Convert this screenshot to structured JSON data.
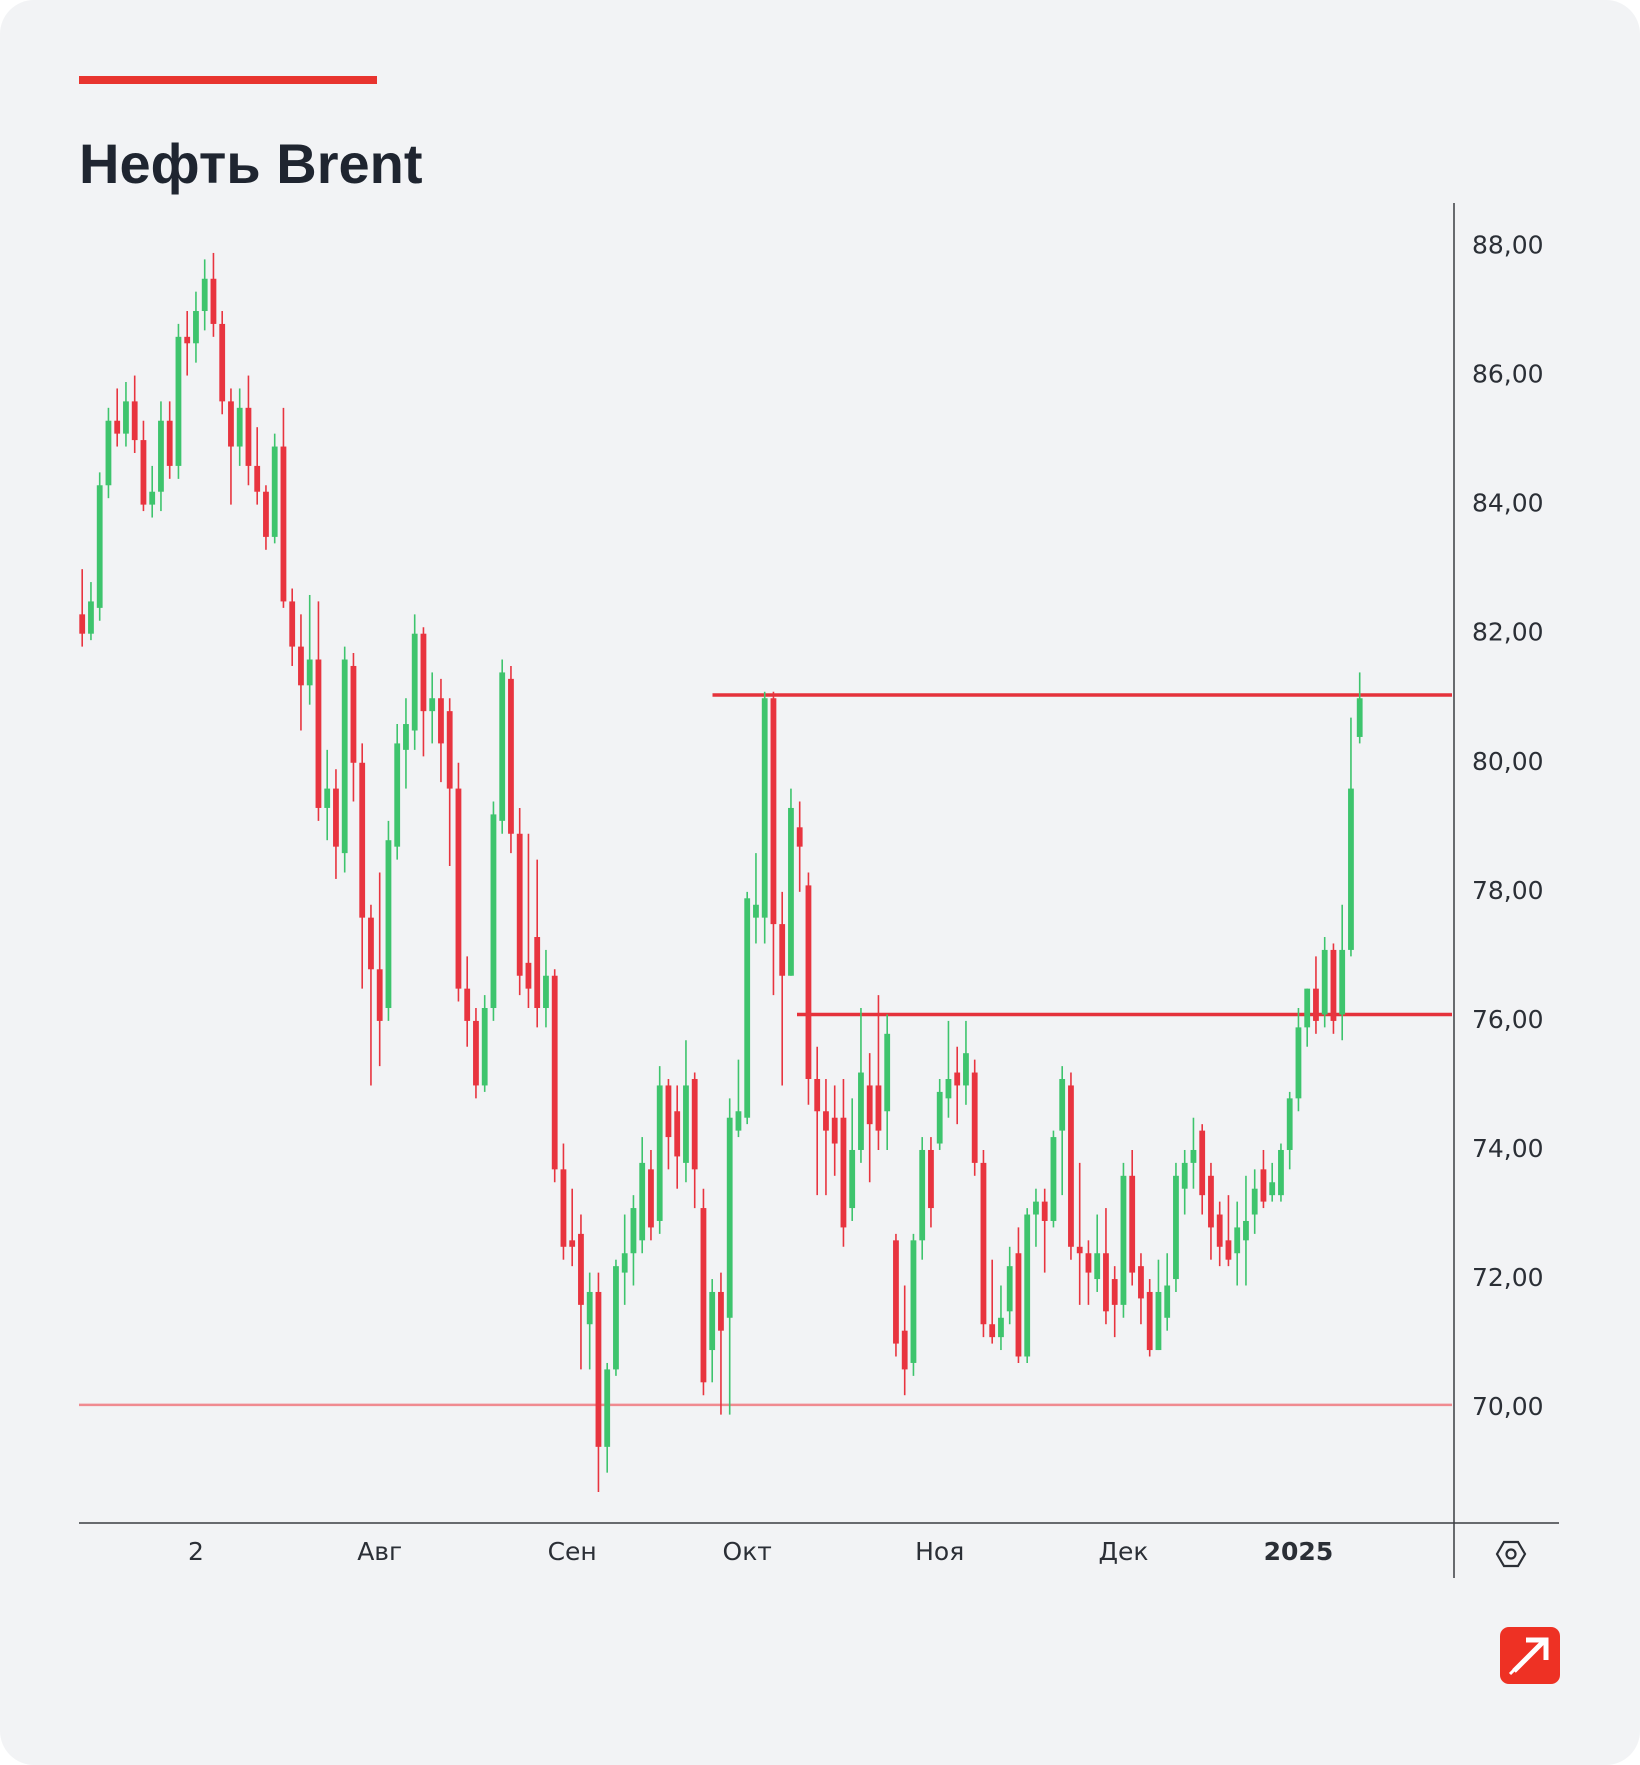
{
  "chart_data": {
    "type": "candlestick",
    "title": "Нефть Brent",
    "up_color": "#3ec46d",
    "down_color": "#e8343f",
    "categories": [
      null,
      null,
      null,
      null,
      null,
      null,
      null,
      null,
      null,
      null,
      null,
      null,
      null,
      "2",
      null,
      null,
      null,
      null,
      null,
      null,
      null,
      null,
      null,
      null,
      null,
      null,
      null,
      null,
      null,
      null,
      null,
      null,
      null,
      null,
      "Авг",
      null,
      null,
      null,
      null,
      null,
      null,
      null,
      null,
      null,
      null,
      null,
      null,
      null,
      null,
      null,
      null,
      null,
      null,
      null,
      null,
      null,
      "Сен",
      null,
      null,
      null,
      null,
      null,
      null,
      null,
      null,
      null,
      null,
      null,
      null,
      null,
      null,
      null,
      null,
      null,
      null,
      null,
      "Окт",
      null,
      null,
      null,
      null,
      null,
      null,
      null,
      null,
      null,
      null,
      null,
      null,
      null,
      null,
      null,
      null,
      null,
      null,
      null,
      null,
      null,
      "Ноя",
      null,
      null,
      null,
      null,
      null,
      null,
      null,
      null,
      null,
      null,
      null,
      null,
      null,
      null,
      null,
      null,
      null,
      null,
      null,
      null,
      "Дек",
      null,
      null,
      null,
      null,
      null,
      null,
      null,
      null,
      null,
      null,
      null,
      null,
      null,
      null,
      null,
      null,
      null,
      null,
      null,
      "2025",
      null,
      null,
      null,
      null,
      null,
      null,
      null
    ],
    "open": [
      82.3,
      82.0,
      82.4,
      84.3,
      85.3,
      85.1,
      85.6,
      85.0,
      84.0,
      84.2,
      85.3,
      84.6,
      86.6,
      86.5,
      87.0,
      87.5,
      86.8,
      85.6,
      84.9,
      85.5,
      84.6,
      84.2,
      83.5,
      84.9,
      82.5,
      81.8,
      81.2,
      81.6,
      79.3,
      79.6,
      78.6,
      81.5,
      80.0,
      77.6,
      76.8,
      76.2,
      78.7,
      80.2,
      80.5,
      82.0,
      80.8,
      81.0,
      80.8,
      79.6,
      76.5,
      76.0,
      75.0,
      76.2,
      79.1,
      81.3,
      78.9,
      76.9,
      77.3,
      76.2,
      76.7,
      73.7,
      72.6,
      72.7,
      71.3,
      71.8,
      69.4,
      70.6,
      72.1,
      72.4,
      72.6,
      73.7,
      72.9,
      75.0,
      74.6,
      73.8,
      75.1,
      73.1,
      70.9,
      71.8,
      71.4,
      74.3,
      74.5,
      77.6,
      77.6,
      81.0,
      77.5,
      76.7,
      79.0,
      78.1,
      75.1,
      74.6,
      74.5,
      74.5,
      73.1,
      74.0,
      75.0,
      75.0,
      74.6,
      72.6,
      71.2,
      70.7,
      72.6,
      74.0,
      74.1,
      74.8,
      75.2,
      75.0,
      75.2,
      73.8,
      71.3,
      71.1,
      71.5,
      72.4,
      70.8,
      73.0,
      73.2,
      72.9,
      74.3,
      75.0,
      72.5,
      72.4,
      72.0,
      72.4,
      72.0,
      71.6,
      73.6,
      72.2,
      71.8,
      70.9,
      71.4,
      72.0,
      73.4,
      73.8,
      74.3,
      73.6,
      73.0,
      72.6,
      72.4,
      72.6,
      73.0,
      73.7,
      73.3,
      73.3,
      74.0,
      74.8,
      75.9,
      76.5,
      76.1,
      77.1,
      76.1,
      77.1,
      80.4
    ],
    "high": [
      83.0,
      82.8,
      84.5,
      85.5,
      85.8,
      85.9,
      86.0,
      85.3,
      84.6,
      85.6,
      85.6,
      86.8,
      87.0,
      87.3,
      87.8,
      87.9,
      87.0,
      85.8,
      85.8,
      86.0,
      85.2,
      84.3,
      85.1,
      85.5,
      82.7,
      82.3,
      82.6,
      82.5,
      80.2,
      79.9,
      81.8,
      81.7,
      80.3,
      77.8,
      78.3,
      79.1,
      80.6,
      81.0,
      82.3,
      82.1,
      81.4,
      81.3,
      81.0,
      80.0,
      77.0,
      76.2,
      76.4,
      79.4,
      81.6,
      81.5,
      79.3,
      78.9,
      78.5,
      77.1,
      76.8,
      74.1,
      73.4,
      73.0,
      72.1,
      72.1,
      70.7,
      72.3,
      73.0,
      73.3,
      74.2,
      74.0,
      75.3,
      75.1,
      75.0,
      75.7,
      75.2,
      73.4,
      72.0,
      72.1,
      74.8,
      75.4,
      78.0,
      78.6,
      81.1,
      81.1,
      78.0,
      79.6,
      79.4,
      78.3,
      75.6,
      75.1,
      75.0,
      75.1,
      74.8,
      76.2,
      75.5,
      76.4,
      76.1,
      72.7,
      71.9,
      72.7,
      74.2,
      74.2,
      75.1,
      76.0,
      75.6,
      76.0,
      75.4,
      74.0,
      72.3,
      71.9,
      72.5,
      72.8,
      73.1,
      73.4,
      73.4,
      74.3,
      75.3,
      75.2,
      73.8,
      72.6,
      73.0,
      73.1,
      72.2,
      73.8,
      74.0,
      72.4,
      72.0,
      72.3,
      72.4,
      73.8,
      74.0,
      74.5,
      74.4,
      73.8,
      73.2,
      73.3,
      73.2,
      73.6,
      73.7,
      74.0,
      73.8,
      74.1,
      74.9,
      76.2,
      76.5,
      77.0,
      77.3,
      77.2,
      77.8,
      80.7,
      81.4
    ],
    "low": [
      81.8,
      81.9,
      82.2,
      84.1,
      84.9,
      84.9,
      84.8,
      83.9,
      83.8,
      83.9,
      84.4,
      84.4,
      86.0,
      86.2,
      86.7,
      86.6,
      85.4,
      84.0,
      84.6,
      84.3,
      84.0,
      83.3,
      83.4,
      82.4,
      81.5,
      80.5,
      80.9,
      79.1,
      78.8,
      78.2,
      78.3,
      79.4,
      76.5,
      75.0,
      75.3,
      76.0,
      78.5,
      79.6,
      80.2,
      80.1,
      80.3,
      79.7,
      78.4,
      76.3,
      75.6,
      74.8,
      74.9,
      76.0,
      78.9,
      78.6,
      76.4,
      76.2,
      75.9,
      75.9,
      73.5,
      72.3,
      72.2,
      70.6,
      70.6,
      68.7,
      69.0,
      70.5,
      71.6,
      71.9,
      72.4,
      72.6,
      72.7,
      73.7,
      73.4,
      73.5,
      73.1,
      70.2,
      70.4,
      69.9,
      69.9,
      74.2,
      74.4,
      77.2,
      77.2,
      76.4,
      75.0,
      76.7,
      78.0,
      74.7,
      73.3,
      73.3,
      73.6,
      72.5,
      72.9,
      73.8,
      73.5,
      74.0,
      74.0,
      70.8,
      70.2,
      70.5,
      72.3,
      72.8,
      74.0,
      74.5,
      74.4,
      74.7,
      73.6,
      71.1,
      71.0,
      70.9,
      71.3,
      70.7,
      70.7,
      72.5,
      72.1,
      72.8,
      73.3,
      72.3,
      71.6,
      71.6,
      71.8,
      71.3,
      71.1,
      71.4,
      71.9,
      71.3,
      70.8,
      70.9,
      71.2,
      71.8,
      73.0,
      73.4,
      73.0,
      72.3,
      72.2,
      72.2,
      71.9,
      71.9,
      72.7,
      73.1,
      73.2,
      73.2,
      73.7,
      74.6,
      75.6,
      75.8,
      75.9,
      75.8,
      75.7,
      77.0,
      80.3
    ],
    "close": [
      82.0,
      82.5,
      84.3,
      85.3,
      85.1,
      85.6,
      85.0,
      84.0,
      84.2,
      85.3,
      84.6,
      86.6,
      86.5,
      87.0,
      87.5,
      86.8,
      85.6,
      84.9,
      85.5,
      84.6,
      84.2,
      83.5,
      84.9,
      82.5,
      81.8,
      81.2,
      81.6,
      79.3,
      79.6,
      78.7,
      81.6,
      80.0,
      77.6,
      76.8,
      76.0,
      78.8,
      80.3,
      80.6,
      82.0,
      80.8,
      81.0,
      80.3,
      79.6,
      76.5,
      76.0,
      75.0,
      76.2,
      79.2,
      81.4,
      78.9,
      76.7,
      76.5,
      76.2,
      76.7,
      73.7,
      72.5,
      72.5,
      71.6,
      71.8,
      69.4,
      70.6,
      72.2,
      72.4,
      73.1,
      73.8,
      72.8,
      75.0,
      74.2,
      73.9,
      75.0,
      73.7,
      70.4,
      71.8,
      71.2,
      74.5,
      74.6,
      77.9,
      77.8,
      81.0,
      77.5,
      76.7,
      79.3,
      78.7,
      75.1,
      74.6,
      74.3,
      74.1,
      72.8,
      74.0,
      75.2,
      74.4,
      74.3,
      75.8,
      71.0,
      70.6,
      72.6,
      74.0,
      73.1,
      74.9,
      75.1,
      75.0,
      75.5,
      73.8,
      71.3,
      71.1,
      71.4,
      72.2,
      70.8,
      73.0,
      73.2,
      72.9,
      74.2,
      75.1,
      72.5,
      72.4,
      72.1,
      72.4,
      71.5,
      71.6,
      73.6,
      72.1,
      71.7,
      70.9,
      71.8,
      71.9,
      73.6,
      73.8,
      74.0,
      73.3,
      72.8,
      72.5,
      72.3,
      72.8,
      72.9,
      73.4,
      73.2,
      73.5,
      74.0,
      74.8,
      75.9,
      76.5,
      76.0,
      77.1,
      76.0,
      77.1,
      79.6,
      81.0
    ],
    "ylim": [
      68.22,
      88.68
    ],
    "yticks": [
      {
        "value": 70,
        "label": "70,00"
      },
      {
        "value": 72,
        "label": "72,00"
      },
      {
        "value": 74,
        "label": "74,00"
      },
      {
        "value": 76,
        "label": "76,00"
      },
      {
        "value": 78,
        "label": "78,00"
      },
      {
        "value": 80,
        "label": "80,00"
      },
      {
        "value": 82,
        "label": "82,00"
      },
      {
        "value": 84,
        "label": "84,00"
      },
      {
        "value": 86,
        "label": "86,00"
      },
      {
        "value": 88,
        "label": "88,00"
      }
    ],
    "hlines": [
      {
        "value": 81.05,
        "color": "#e5323b"
      },
      {
        "value": 76.1,
        "color": "#e5323b"
      },
      {
        "value": 70.05,
        "color": "#f08a90"
      }
    ]
  }
}
